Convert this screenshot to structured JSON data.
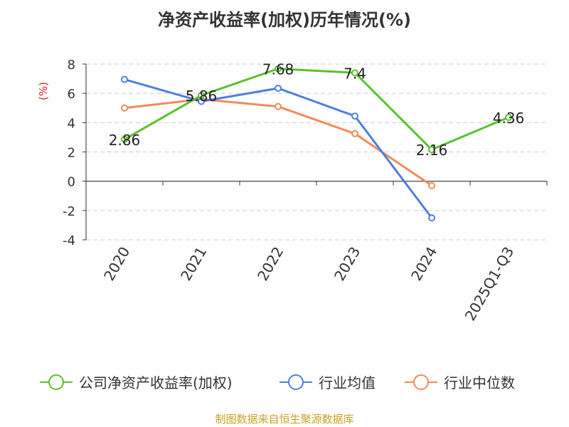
{
  "chart_data": {
    "type": "line",
    "title": "净资产收益率(加权)历年情况(%)",
    "ylabel": "(%)",
    "xlabel": "",
    "categories": [
      "2020",
      "2021",
      "2022",
      "2023",
      "2024",
      "2025Q1-Q3"
    ],
    "ylim": [
      -4,
      8
    ],
    "yticks": [
      "8",
      "6",
      "4",
      "2",
      "0",
      "-2",
      "-4"
    ],
    "grid": true,
    "legend_position": "bottom",
    "series": [
      {
        "name": "公司净资产收益率(加权)",
        "values": [
          2.86,
          5.86,
          7.68,
          7.4,
          2.16,
          4.36
        ],
        "labels": [
          "2.86",
          "5.86",
          "7.68",
          "7.4",
          "2.16",
          "4.36"
        ],
        "color": "#5cc02e"
      },
      {
        "name": "行业均值",
        "values": [
          6.95,
          5.45,
          6.35,
          4.45,
          -2.5,
          null
        ],
        "color": "#4f7fdc"
      },
      {
        "name": "行业中位数",
        "values": [
          5.0,
          5.6,
          5.1,
          3.25,
          -0.3,
          null
        ],
        "color": "#f28b5a"
      }
    ]
  },
  "footer": {
    "source": "制图数据来自恒生聚源数据库"
  }
}
